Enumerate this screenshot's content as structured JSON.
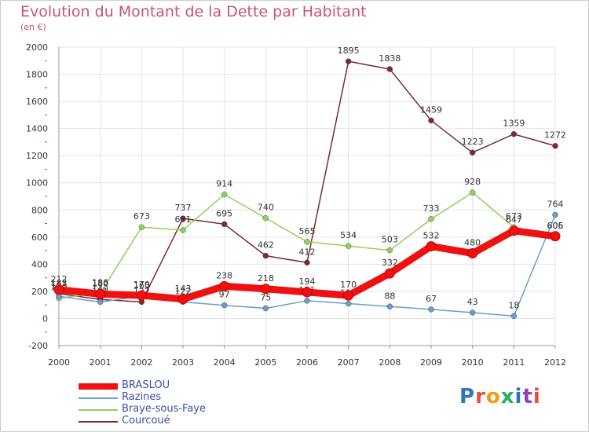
{
  "title": "Evolution du Montant de la Dette par Habitant",
  "subtitle": "(en €)",
  "brand": {
    "text": "Proxiti",
    "letter_colors": [
      "#2f74c0",
      "#e74c3c",
      "#f39c12",
      "#27ae60",
      "#2f74c0",
      "#8e44ad",
      "#e74c3c"
    ]
  },
  "chart_data": {
    "type": "line",
    "x": [
      "2000",
      "2001",
      "2002",
      "2003",
      "2004",
      "2005",
      "2006",
      "2007",
      "2008",
      "2009",
      "2010",
      "2011",
      "2012"
    ],
    "ylim": [
      -200,
      2000
    ],
    "yticks": [
      "-200",
      "0",
      "200",
      "400",
      "600",
      "800",
      "1000",
      "1200",
      "1400",
      "1600",
      "1800",
      "2000"
    ],
    "grid": true,
    "legend_position": "bottom-left",
    "series": [
      {
        "name": "Courcoué",
        "color": "#7a2a33",
        "values": [
          183,
          140,
          122,
          737,
          695,
          462,
          412,
          1895,
          1838,
          1459,
          1223,
          1359,
          1272
        ]
      },
      {
        "name": "Braye-sous-Faye",
        "color": "#90d060",
        "values": [
          150,
          186,
          673,
          651,
          914,
          740,
          565,
          534,
          503,
          733,
          928,
          673,
          605
        ]
      },
      {
        "name": "Razines",
        "color": "#6b9ccc",
        "values": [
          163,
          121,
          165,
          122,
          97,
          75,
          131,
          110,
          88,
          67,
          43,
          18,
          764
        ]
      },
      {
        "name": "BRASLOU",
        "color": "#ee1111",
        "values": [
          212,
          180,
          170,
          143,
          238,
          218,
          194,
          170,
          332,
          532,
          480,
          647,
          606
        ]
      }
    ]
  }
}
